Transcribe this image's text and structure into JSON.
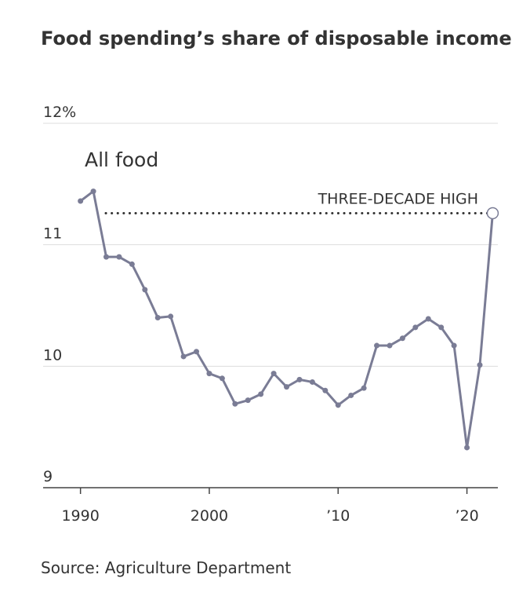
{
  "chart_data": {
    "type": "line",
    "title": "Food spending’s share of disposable income",
    "source": "Source: Agriculture Department",
    "series_label": "All food",
    "annotation": {
      "value": 11.26,
      "label": "THREE-DECADE HIGH"
    },
    "x": [
      1990,
      1991,
      1992,
      1993,
      1994,
      1995,
      1996,
      1997,
      1998,
      1999,
      2000,
      2001,
      2002,
      2003,
      2004,
      2005,
      2006,
      2007,
      2008,
      2009,
      2010,
      2011,
      2012,
      2013,
      2014,
      2015,
      2016,
      2017,
      2018,
      2019,
      2020,
      2021,
      2022
    ],
    "series": [
      {
        "name": "All food",
        "color": "#7a7c95",
        "values": [
          11.36,
          11.44,
          10.9,
          10.9,
          10.84,
          10.63,
          10.4,
          10.41,
          10.08,
          10.12,
          9.94,
          9.9,
          9.69,
          9.72,
          9.77,
          9.94,
          9.83,
          9.89,
          9.87,
          9.8,
          9.68,
          9.76,
          9.82,
          10.17,
          10.17,
          10.23,
          10.32,
          10.39,
          10.32,
          10.17,
          9.33,
          10.01,
          11.26
        ]
      }
    ],
    "xlim": [
      1987.1,
      2022.4
    ],
    "xticks": [
      1990,
      2000,
      {
        "value": 2010,
        "label": "’10"
      },
      {
        "value": 2020,
        "label": "’20"
      }
    ],
    "ylim": [
      9,
      12
    ],
    "yticks": [
      {
        "value": 12,
        "label": "12%"
      },
      11,
      10,
      9
    ],
    "grid": true
  }
}
